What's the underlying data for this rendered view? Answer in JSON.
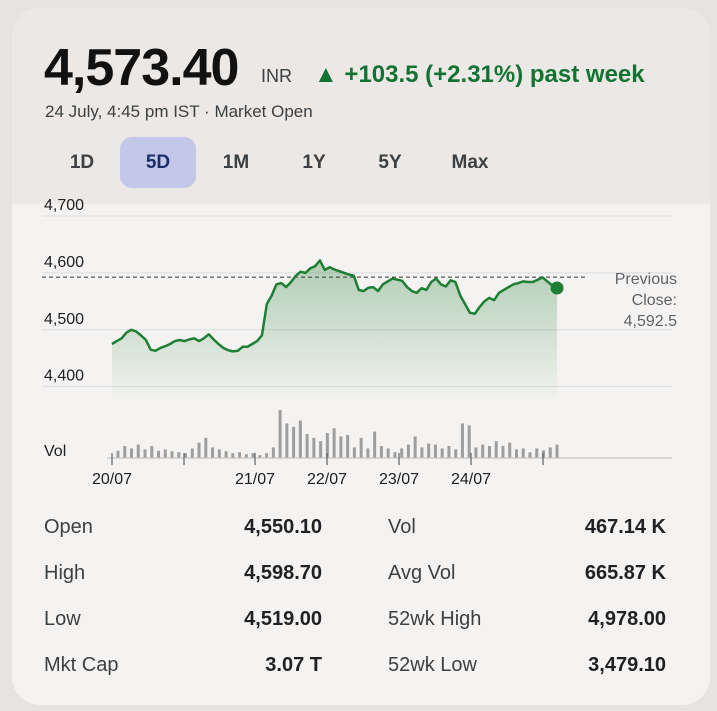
{
  "quote": {
    "price": "4,573.40",
    "currency": "INR",
    "change": "▲ +103.5 (+2.31%) past week",
    "timestamp": "24 July, 4:45 pm IST · Market Open"
  },
  "tabs": [
    {
      "label": "1D",
      "active": false
    },
    {
      "label": "5D",
      "active": true
    },
    {
      "label": "1M",
      "active": false
    },
    {
      "label": "1Y",
      "active": false
    },
    {
      "label": "5Y",
      "active": false
    },
    {
      "label": "Max",
      "active": false
    }
  ],
  "previous_close": {
    "label_1": "Previous",
    "label_2": "Close:",
    "value": "4,592.5"
  },
  "colors": {
    "up": "#137333",
    "line": "#1e7e34",
    "volume": "#9e9e9e",
    "active_tab": "#c3c7ea"
  },
  "chart_data": {
    "type": "line",
    "ylim": [
      4380,
      4700
    ],
    "yticks": [
      "4,700",
      "4,600",
      "4,500",
      "4,400"
    ],
    "ytick_values": [
      4700,
      4600,
      4500,
      4400
    ],
    "xtick_labels": [
      "20/07",
      "21/07",
      "22/07",
      "23/07",
      "24/07"
    ],
    "reference_line": 4592.5,
    "volume_label": "Vol",
    "series": [
      {
        "values": [
          4475,
          4480,
          4485,
          4495,
          4500,
          4497,
          4490,
          4482,
          4465,
          4463,
          4468,
          4471,
          4475,
          4480,
          4482,
          4480,
          4483,
          4485,
          4480,
          4485,
          4492,
          4483,
          4475,
          4468,
          4464,
          4462,
          4463,
          4470,
          4470,
          4475,
          4480,
          4490,
          4545,
          4560,
          4580,
          4582,
          4575,
          4584,
          4595,
          4602,
          4600,
          4608,
          4612,
          4622,
          4605,
          4610,
          4606,
          4603,
          4600,
          4597,
          4595,
          4570,
          4568,
          4574,
          4575,
          4568,
          4580,
          4585,
          4590,
          4588,
          4586,
          4575,
          4568,
          4565,
          4573,
          4570,
          4584,
          4590,
          4580,
          4576,
          4587,
          4584,
          4560,
          4545,
          4530,
          4528,
          4540,
          4550,
          4556,
          4552,
          4565,
          4570,
          4575,
          4580,
          4582,
          4585,
          4584,
          4584,
          4588,
          4592,
          4585,
          4578,
          4573.4
        ]
      }
    ],
    "volume": [
      0.15,
      0.25,
      0.2,
      0.28,
      0.18,
      0.25,
      0.15,
      0.18,
      0.14,
      0.12,
      0.1,
      0.2,
      0.32,
      0.42,
      0.22,
      0.18,
      0.14,
      0.1,
      0.12,
      0.08,
      0.1,
      0.06,
      0.1,
      0.22,
      1.0,
      0.72,
      0.65,
      0.78,
      0.5,
      0.42,
      0.35,
      0.52,
      0.62,
      0.45,
      0.48,
      0.22,
      0.42,
      0.2,
      0.55,
      0.25,
      0.2,
      0.12,
      0.2,
      0.28,
      0.45,
      0.22,
      0.3,
      0.28,
      0.2,
      0.25,
      0.18,
      0.72,
      0.68,
      0.22,
      0.28,
      0.25,
      0.35,
      0.25,
      0.32,
      0.18,
      0.2,
      0.12,
      0.2,
      0.16,
      0.22,
      0.28
    ]
  },
  "stats": [
    {
      "label": "Open",
      "value": "4,550.10"
    },
    {
      "label": "High",
      "value": "4,598.70"
    },
    {
      "label": "Low",
      "value": "4,519.00"
    },
    {
      "label": "Mkt Cap",
      "value": "3.07 T"
    },
    {
      "label": "Vol",
      "value": "467.14 K"
    },
    {
      "label": "Avg Vol",
      "value": "665.87 K"
    },
    {
      "label": "52wk High",
      "value": "4,978.00"
    },
    {
      "label": "52wk Low",
      "value": "3,479.10"
    }
  ]
}
